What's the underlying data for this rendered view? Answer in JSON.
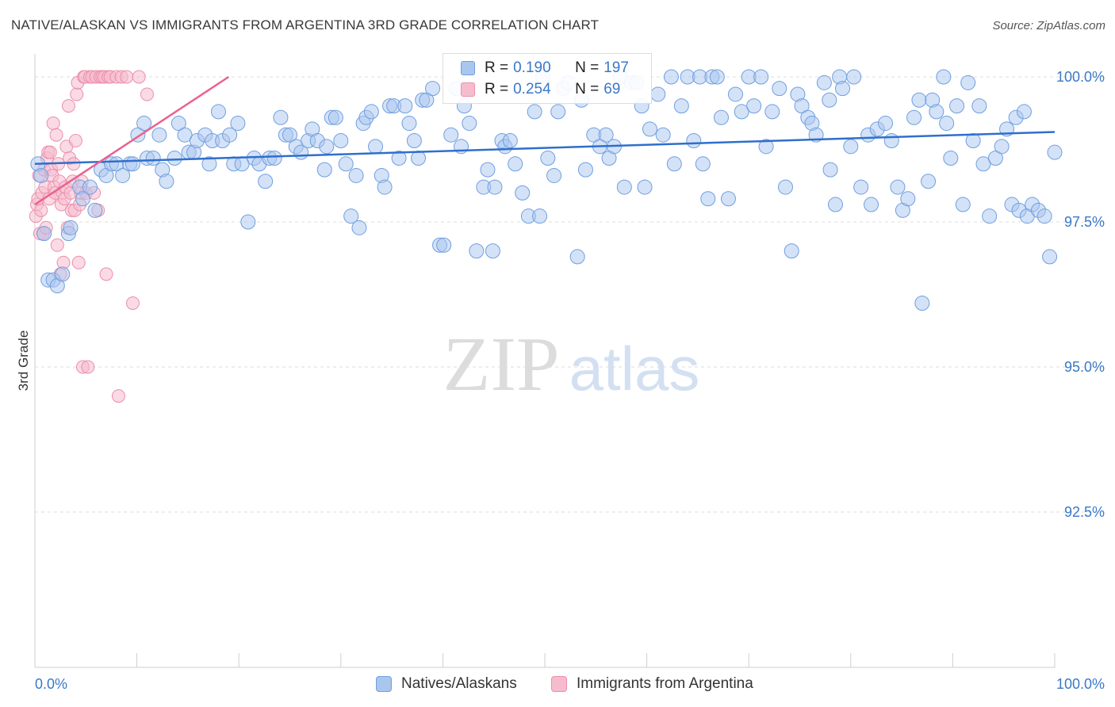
{
  "title": "NATIVE/ALASKAN VS IMMIGRANTS FROM ARGENTINA 3RD GRADE CORRELATION CHART",
  "source": "Source: ZipAtlas.com",
  "watermark": {
    "zip": "ZIP",
    "atlas": "atlas"
  },
  "legend": {
    "row1": {
      "r_label": "R =",
      "r_value": "0.190",
      "n_label": "N =",
      "n_value": "197"
    },
    "row2": {
      "r_label": "R =",
      "r_value": "0.254",
      "n_label": "N =",
      "n_value": "69"
    }
  },
  "bottom_legend": {
    "series1": "Natives/Alaskans",
    "series2": "Immigrants from Argentina"
  },
  "colors": {
    "blue_fill": "#a9c6ef",
    "blue_stroke": "#6f9fe0",
    "blue_line": "#2f6fcc",
    "pink_fill": "#f6bccd",
    "pink_stroke": "#ec8fac",
    "pink_line": "#e8638f",
    "axis_text": "#3a78c9",
    "grid": "#dedede"
  },
  "chart_data": {
    "type": "scatter",
    "title": "NATIVE/ALASKAN VS IMMIGRANTS FROM ARGENTINA 3RD GRADE CORRELATION CHART",
    "xlabel": "",
    "ylabel": "3rd Grade",
    "xlim": [
      0,
      100
    ],
    "ylim": [
      90.0,
      100.4
    ],
    "x_tick_labels": [
      "0.0%",
      "100.0%"
    ],
    "y_ticks": [
      {
        "value": 100.0,
        "label": "100.0%"
      },
      {
        "value": 97.5,
        "label": "97.5%"
      },
      {
        "value": 95.0,
        "label": "95.0%"
      },
      {
        "value": 92.5,
        "label": "92.5%"
      }
    ],
    "series": [
      {
        "name": "Natives/Alaskans",
        "r": 0.19,
        "n": 197,
        "trend": {
          "x": [
            0,
            100
          ],
          "y": [
            98.5,
            99.05
          ]
        },
        "points": [
          [
            0.3,
            98.5
          ],
          [
            0.6,
            98.3
          ],
          [
            0.9,
            97.3
          ],
          [
            1.3,
            96.5
          ],
          [
            1.8,
            96.5
          ],
          [
            2.2,
            96.4
          ],
          [
            2.7,
            96.6
          ],
          [
            3.3,
            97.3
          ],
          [
            3.5,
            97.4
          ],
          [
            4.4,
            98.1
          ],
          [
            4.7,
            97.9
          ],
          [
            5.4,
            98.1
          ],
          [
            5.9,
            97.7
          ],
          [
            6.5,
            98.4
          ],
          [
            7.0,
            98.3
          ],
          [
            7.5,
            98.5
          ],
          [
            8.0,
            98.5
          ],
          [
            8.6,
            98.3
          ],
          [
            9.3,
            98.5
          ],
          [
            9.6,
            98.5
          ],
          [
            10.1,
            99.0
          ],
          [
            10.7,
            99.2
          ],
          [
            11.0,
            98.6
          ],
          [
            11.6,
            98.6
          ],
          [
            12.2,
            99.0
          ],
          [
            12.5,
            98.4
          ],
          [
            12.9,
            98.2
          ],
          [
            13.7,
            98.6
          ],
          [
            14.1,
            99.2
          ],
          [
            14.7,
            99.0
          ],
          [
            15.1,
            98.7
          ],
          [
            15.6,
            98.7
          ],
          [
            15.9,
            98.9
          ],
          [
            16.7,
            99.0
          ],
          [
            17.1,
            98.5
          ],
          [
            17.4,
            98.9
          ],
          [
            18.0,
            99.4
          ],
          [
            18.4,
            98.9
          ],
          [
            19.1,
            99.0
          ],
          [
            19.5,
            98.5
          ],
          [
            19.9,
            99.2
          ],
          [
            20.3,
            98.5
          ],
          [
            20.9,
            97.5
          ],
          [
            21.5,
            98.6
          ],
          [
            22.0,
            98.5
          ],
          [
            22.6,
            98.2
          ],
          [
            23.0,
            98.6
          ],
          [
            23.5,
            98.6
          ],
          [
            24.1,
            99.3
          ],
          [
            24.6,
            99.0
          ],
          [
            25.0,
            99.0
          ],
          [
            25.6,
            98.8
          ],
          [
            26.1,
            98.7
          ],
          [
            26.8,
            98.9
          ],
          [
            27.2,
            99.1
          ],
          [
            27.7,
            98.9
          ],
          [
            28.4,
            98.4
          ],
          [
            28.6,
            98.8
          ],
          [
            29.1,
            99.3
          ],
          [
            29.5,
            99.3
          ],
          [
            30.0,
            98.9
          ],
          [
            30.5,
            98.5
          ],
          [
            31.0,
            97.6
          ],
          [
            31.5,
            98.3
          ],
          [
            31.8,
            97.4
          ],
          [
            32.2,
            99.2
          ],
          [
            32.5,
            99.3
          ],
          [
            33.0,
            99.4
          ],
          [
            33.4,
            98.8
          ],
          [
            34.0,
            98.3
          ],
          [
            34.3,
            98.1
          ],
          [
            34.8,
            99.5
          ],
          [
            35.2,
            99.5
          ],
          [
            35.7,
            98.6
          ],
          [
            36.3,
            99.5
          ],
          [
            36.7,
            99.2
          ],
          [
            37.2,
            98.9
          ],
          [
            37.6,
            98.6
          ],
          [
            38.0,
            99.6
          ],
          [
            38.4,
            99.6
          ],
          [
            39.0,
            99.8
          ],
          [
            39.7,
            97.1
          ],
          [
            40.1,
            97.1
          ],
          [
            40.8,
            99.0
          ],
          [
            41.3,
            99.8
          ],
          [
            41.8,
            98.8
          ],
          [
            42.1,
            99.5
          ],
          [
            42.6,
            99.2
          ],
          [
            43.3,
            97.0
          ],
          [
            44.0,
            98.1
          ],
          [
            44.4,
            98.4
          ],
          [
            44.9,
            97.0
          ],
          [
            45.1,
            98.1
          ],
          [
            45.8,
            98.9
          ],
          [
            46.1,
            98.8
          ],
          [
            46.6,
            98.9
          ],
          [
            47.1,
            98.5
          ],
          [
            47.8,
            98.0
          ],
          [
            48.4,
            97.6
          ],
          [
            49.0,
            99.4
          ],
          [
            49.5,
            97.6
          ],
          [
            49.8,
            100.0
          ],
          [
            50.3,
            98.6
          ],
          [
            50.9,
            98.3
          ],
          [
            51.3,
            99.4
          ],
          [
            51.8,
            99.8
          ],
          [
            52.3,
            99.9
          ],
          [
            53.2,
            96.9
          ],
          [
            53.6,
            99.6
          ],
          [
            54.0,
            98.4
          ],
          [
            54.8,
            99.0
          ],
          [
            55.4,
            98.8
          ],
          [
            56.0,
            99.0
          ],
          [
            56.3,
            98.6
          ],
          [
            56.8,
            98.8
          ],
          [
            57.4,
            100.0
          ],
          [
            57.8,
            98.1
          ],
          [
            58.5,
            99.9
          ],
          [
            59.0,
            99.9
          ],
          [
            59.5,
            99.5
          ],
          [
            59.8,
            98.1
          ],
          [
            60.3,
            99.1
          ],
          [
            61.1,
            99.7
          ],
          [
            61.6,
            99.0
          ],
          [
            62.4,
            100.0
          ],
          [
            62.7,
            98.5
          ],
          [
            63.4,
            99.5
          ],
          [
            64.0,
            100.0
          ],
          [
            64.6,
            98.9
          ],
          [
            65.2,
            100.0
          ],
          [
            65.5,
            98.5
          ],
          [
            66.0,
            97.9
          ],
          [
            66.4,
            100.0
          ],
          [
            66.9,
            100.0
          ],
          [
            67.3,
            99.3
          ],
          [
            68.0,
            97.9
          ],
          [
            68.7,
            99.7
          ],
          [
            69.3,
            99.4
          ],
          [
            70.0,
            100.0
          ],
          [
            70.5,
            99.5
          ],
          [
            71.2,
            100.0
          ],
          [
            71.7,
            98.8
          ],
          [
            72.3,
            99.4
          ],
          [
            73.0,
            99.8
          ],
          [
            73.6,
            98.1
          ],
          [
            74.2,
            97.0
          ],
          [
            74.8,
            99.7
          ],
          [
            75.2,
            99.5
          ],
          [
            75.8,
            99.3
          ],
          [
            76.2,
            99.2
          ],
          [
            76.6,
            99.0
          ],
          [
            77.4,
            99.9
          ],
          [
            78.0,
            98.4
          ],
          [
            78.5,
            97.8
          ],
          [
            78.9,
            100.0
          ],
          [
            79.2,
            99.8
          ],
          [
            80.0,
            98.8
          ],
          [
            80.3,
            100.0
          ],
          [
            81.0,
            98.1
          ],
          [
            81.7,
            99.0
          ],
          [
            82.0,
            97.8
          ],
          [
            82.6,
            99.1
          ],
          [
            83.4,
            99.2
          ],
          [
            84.0,
            98.9
          ],
          [
            84.6,
            98.1
          ],
          [
            85.1,
            97.7
          ],
          [
            85.6,
            97.9
          ],
          [
            86.2,
            99.3
          ],
          [
            86.7,
            99.6
          ],
          [
            87.0,
            96.1
          ],
          [
            87.6,
            98.2
          ],
          [
            88.0,
            99.6
          ],
          [
            88.4,
            99.4
          ],
          [
            89.1,
            100.0
          ],
          [
            89.4,
            99.2
          ],
          [
            89.8,
            98.6
          ],
          [
            90.4,
            99.5
          ],
          [
            91.0,
            97.8
          ],
          [
            91.5,
            99.9
          ],
          [
            92.0,
            98.9
          ],
          [
            92.6,
            99.5
          ],
          [
            93.0,
            98.5
          ],
          [
            93.6,
            97.6
          ],
          [
            94.2,
            98.6
          ],
          [
            94.8,
            98.8
          ],
          [
            95.3,
            99.1
          ],
          [
            95.8,
            97.8
          ],
          [
            96.2,
            99.3
          ],
          [
            96.5,
            97.7
          ],
          [
            97.0,
            99.4
          ],
          [
            97.3,
            97.6
          ],
          [
            97.8,
            97.8
          ],
          [
            98.4,
            97.7
          ],
          [
            99.0,
            97.6
          ],
          [
            99.5,
            96.9
          ],
          [
            100.0,
            98.7
          ],
          [
            77.9,
            99.6
          ]
        ]
      },
      {
        "name": "Immigrants from Argentina",
        "r": 0.254,
        "n": 69,
        "trend": {
          "x": [
            0,
            19
          ],
          "y": [
            97.8,
            100.0
          ]
        },
        "points": [
          [
            0.1,
            97.6
          ],
          [
            0.2,
            97.8
          ],
          [
            0.3,
            97.9
          ],
          [
            0.4,
            98.3
          ],
          [
            0.5,
            97.3
          ],
          [
            0.6,
            97.7
          ],
          [
            0.7,
            98.0
          ],
          [
            0.8,
            97.3
          ],
          [
            0.9,
            98.4
          ],
          [
            1.0,
            98.1
          ],
          [
            1.1,
            97.4
          ],
          [
            1.2,
            98.6
          ],
          [
            1.3,
            98.7
          ],
          [
            1.4,
            97.9
          ],
          [
            1.5,
            98.7
          ],
          [
            1.6,
            98.4
          ],
          [
            1.7,
            98.3
          ],
          [
            1.8,
            99.2
          ],
          [
            1.9,
            98.1
          ],
          [
            2.0,
            98.0
          ],
          [
            2.1,
            99.0
          ],
          [
            2.2,
            97.1
          ],
          [
            2.3,
            98.5
          ],
          [
            2.4,
            98.2
          ],
          [
            2.5,
            96.6
          ],
          [
            2.6,
            97.8
          ],
          [
            2.7,
            98.0
          ],
          [
            2.8,
            96.8
          ],
          [
            2.9,
            97.9
          ],
          [
            3.0,
            98.1
          ],
          [
            3.1,
            98.8
          ],
          [
            3.2,
            97.4
          ],
          [
            3.3,
            99.5
          ],
          [
            3.4,
            98.6
          ],
          [
            3.5,
            98.0
          ],
          [
            3.6,
            97.7
          ],
          [
            3.7,
            98.2
          ],
          [
            3.8,
            98.5
          ],
          [
            3.9,
            97.7
          ],
          [
            4.0,
            98.9
          ],
          [
            4.1,
            99.7
          ],
          [
            4.2,
            99.9
          ],
          [
            4.3,
            96.8
          ],
          [
            4.4,
            97.8
          ],
          [
            4.5,
            98.0
          ],
          [
            4.6,
            98.2
          ],
          [
            4.7,
            95.0
          ],
          [
            4.8,
            100.0
          ],
          [
            4.9,
            100.0
          ],
          [
            5.0,
            98.0
          ],
          [
            5.2,
            95.0
          ],
          [
            5.4,
            100.0
          ],
          [
            5.6,
            100.0
          ],
          [
            5.8,
            98.0
          ],
          [
            6.0,
            100.0
          ],
          [
            6.2,
            97.7
          ],
          [
            6.4,
            100.0
          ],
          [
            6.6,
            100.0
          ],
          [
            6.8,
            100.0
          ],
          [
            7.0,
            96.6
          ],
          [
            7.2,
            100.0
          ],
          [
            7.4,
            100.0
          ],
          [
            8.0,
            100.0
          ],
          [
            8.2,
            94.5
          ],
          [
            8.5,
            100.0
          ],
          [
            9.0,
            100.0
          ],
          [
            9.6,
            96.1
          ],
          [
            10.2,
            100.0
          ],
          [
            11.0,
            99.7
          ]
        ]
      }
    ]
  }
}
